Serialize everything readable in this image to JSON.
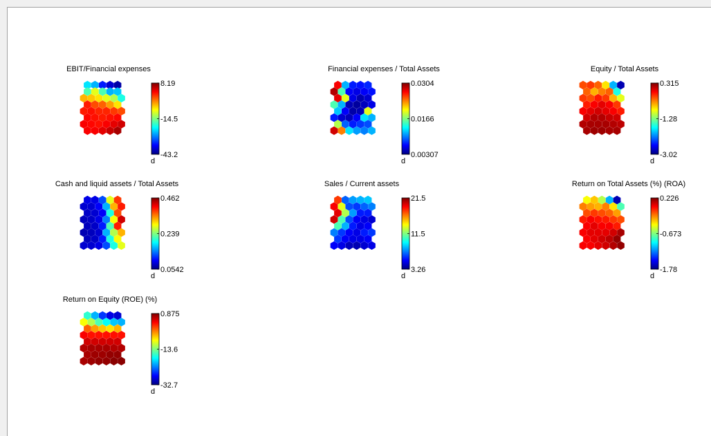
{
  "window": {
    "background": "#ffffff"
  },
  "colormap": "jet",
  "chart_data": [
    {
      "type": "heatmap",
      "title": "EBIT/Financial expenses",
      "colorbar": {
        "max": "8.19",
        "mid": "-14.5",
        "min": "-43.2",
        "unit": "d"
      },
      "grid": [
        [
          0.35,
          0.3,
          0.15,
          0.08,
          0.04
        ],
        [
          0.45,
          0.6,
          0.45,
          0.3,
          0.32
        ],
        [
          0.7,
          0.68,
          0.65,
          0.6,
          0.55,
          0.4
        ],
        [
          0.85,
          0.8,
          0.78,
          0.72,
          0.65
        ],
        [
          0.85,
          0.86,
          0.84,
          0.84,
          0.82,
          0.8
        ],
        [
          0.87,
          0.86,
          0.85,
          0.86,
          0.87
        ],
        [
          0.88,
          0.87,
          0.86,
          0.88,
          0.9,
          0.92
        ],
        [
          0.88,
          0.88,
          0.9,
          0.93,
          0.96
        ]
      ]
    },
    {
      "type": "heatmap",
      "title": "Financial expenses / Total Assets",
      "colorbar": {
        "max": "0.0304",
        "mid": "0.0166",
        "min": "0.00307",
        "unit": "d"
      },
      "grid": [
        [
          0.88,
          0.3,
          0.15,
          0.14,
          0.16
        ],
        [
          0.95,
          0.45,
          0.12,
          0.1,
          0.12,
          0.14
        ],
        [
          0.9,
          0.6,
          0.1,
          0.05,
          0.08
        ],
        [
          0.45,
          0.3,
          0.05,
          0.03,
          0.06,
          0.1
        ],
        [
          0.32,
          0.12,
          0.04,
          0.05,
          0.6
        ],
        [
          0.15,
          0.08,
          0.06,
          0.12,
          0.35,
          0.3
        ],
        [
          0.55,
          0.22,
          0.15,
          0.18,
          0.2
        ],
        [
          0.92,
          0.75,
          0.35,
          0.28,
          0.25,
          0.3
        ]
      ]
    },
    {
      "type": "heatmap",
      "title": "Equity / Total Assets",
      "colorbar": {
        "max": "0.315",
        "mid": "-1.28",
        "min": "-3.02",
        "unit": "d"
      },
      "grid": [
        [
          0.8,
          0.82,
          0.78,
          0.65,
          0.3,
          0.05
        ],
        [
          0.78,
          0.7,
          0.75,
          0.78,
          0.4
        ],
        [
          0.82,
          0.8,
          0.85,
          0.82,
          0.7,
          0.6
        ],
        [
          0.85,
          0.88,
          0.9,
          0.88,
          0.82
        ],
        [
          0.88,
          0.9,
          0.92,
          0.9,
          0.88,
          0.85
        ],
        [
          0.92,
          0.95,
          0.95,
          0.93,
          0.92
        ],
        [
          0.95,
          0.96,
          0.96,
          0.96,
          0.95,
          0.94
        ],
        [
          0.96,
          0.97,
          0.97,
          0.96,
          0.96
        ]
      ]
    },
    {
      "type": "heatmap",
      "title": "Cash and liquid assets / Total Assets",
      "colorbar": {
        "max": "0.462",
        "mid": "0.239",
        "min": "0.0542",
        "unit": "d"
      },
      "grid": [
        [
          0.1,
          0.1,
          0.2,
          0.6,
          0.82
        ],
        [
          0.08,
          0.08,
          0.12,
          0.3,
          0.7,
          0.85
        ],
        [
          0.07,
          0.08,
          0.12,
          0.4,
          0.8
        ],
        [
          0.06,
          0.07,
          0.1,
          0.25,
          0.62,
          0.92
        ],
        [
          0.06,
          0.07,
          0.15,
          0.45,
          0.85
        ],
        [
          0.05,
          0.06,
          0.08,
          0.3,
          0.55,
          0.7
        ],
        [
          0.06,
          0.07,
          0.15,
          0.4,
          0.62
        ],
        [
          0.08,
          0.08,
          0.1,
          0.2,
          0.4,
          0.6
        ]
      ]
    },
    {
      "type": "heatmap",
      "title": "Sales / Current assets",
      "colorbar": {
        "max": "21.5",
        "mid": "11.5",
        "min": "3.26",
        "unit": "d"
      },
      "grid": [
        [
          0.82,
          0.22,
          0.28,
          0.3,
          0.32
        ],
        [
          0.88,
          0.6,
          0.2,
          0.18,
          0.22,
          0.25
        ],
        [
          0.9,
          0.55,
          0.28,
          0.15,
          0.15
        ],
        [
          0.92,
          0.45,
          0.2,
          0.12,
          0.1,
          0.08
        ],
        [
          0.45,
          0.3,
          0.15,
          0.1,
          0.12
        ],
        [
          0.25,
          0.18,
          0.12,
          0.1,
          0.15,
          0.18
        ],
        [
          0.18,
          0.12,
          0.1,
          0.1,
          0.12
        ],
        [
          0.12,
          0.1,
          0.06,
          0.05,
          0.08,
          0.1
        ]
      ]
    },
    {
      "type": "heatmap",
      "title": "Return on Total Assets (%) (ROA)",
      "colorbar": {
        "max": "0.226",
        "mid": "-0.673",
        "min": "-1.78",
        "unit": "d"
      },
      "grid": [
        [
          0.62,
          0.68,
          0.55,
          0.3,
          0.05
        ],
        [
          0.75,
          0.72,
          0.7,
          0.75,
          0.65,
          0.45
        ],
        [
          0.8,
          0.82,
          0.8,
          0.78,
          0.72
        ],
        [
          0.85,
          0.88,
          0.86,
          0.85,
          0.82,
          0.8
        ],
        [
          0.88,
          0.9,
          0.88,
          0.88,
          0.85
        ],
        [
          0.88,
          0.9,
          0.9,
          0.9,
          0.92,
          0.96
        ],
        [
          0.88,
          0.9,
          0.92,
          0.94,
          0.98
        ],
        [
          0.88,
          0.88,
          0.9,
          0.92,
          0.95,
          0.98
        ]
      ]
    },
    {
      "type": "heatmap",
      "title": "Return on Equity (ROE) (%)",
      "colorbar": {
        "max": "0.875",
        "mid": "-13.6",
        "min": "-32.7",
        "unit": "d"
      },
      "grid": [
        [
          0.42,
          0.3,
          0.18,
          0.1,
          0.08
        ],
        [
          0.62,
          0.55,
          0.45,
          0.38,
          0.32,
          0.3
        ],
        [
          0.78,
          0.72,
          0.68,
          0.65,
          0.7
        ],
        [
          0.88,
          0.86,
          0.86,
          0.86,
          0.86,
          0.86
        ],
        [
          0.92,
          0.92,
          0.92,
          0.92,
          0.92
        ],
        [
          0.95,
          0.96,
          0.96,
          0.96,
          0.95,
          0.95
        ],
        [
          0.96,
          0.97,
          0.97,
          0.98,
          0.98
        ],
        [
          0.96,
          0.97,
          0.98,
          0.98,
          0.99,
          0.99
        ]
      ]
    }
  ]
}
